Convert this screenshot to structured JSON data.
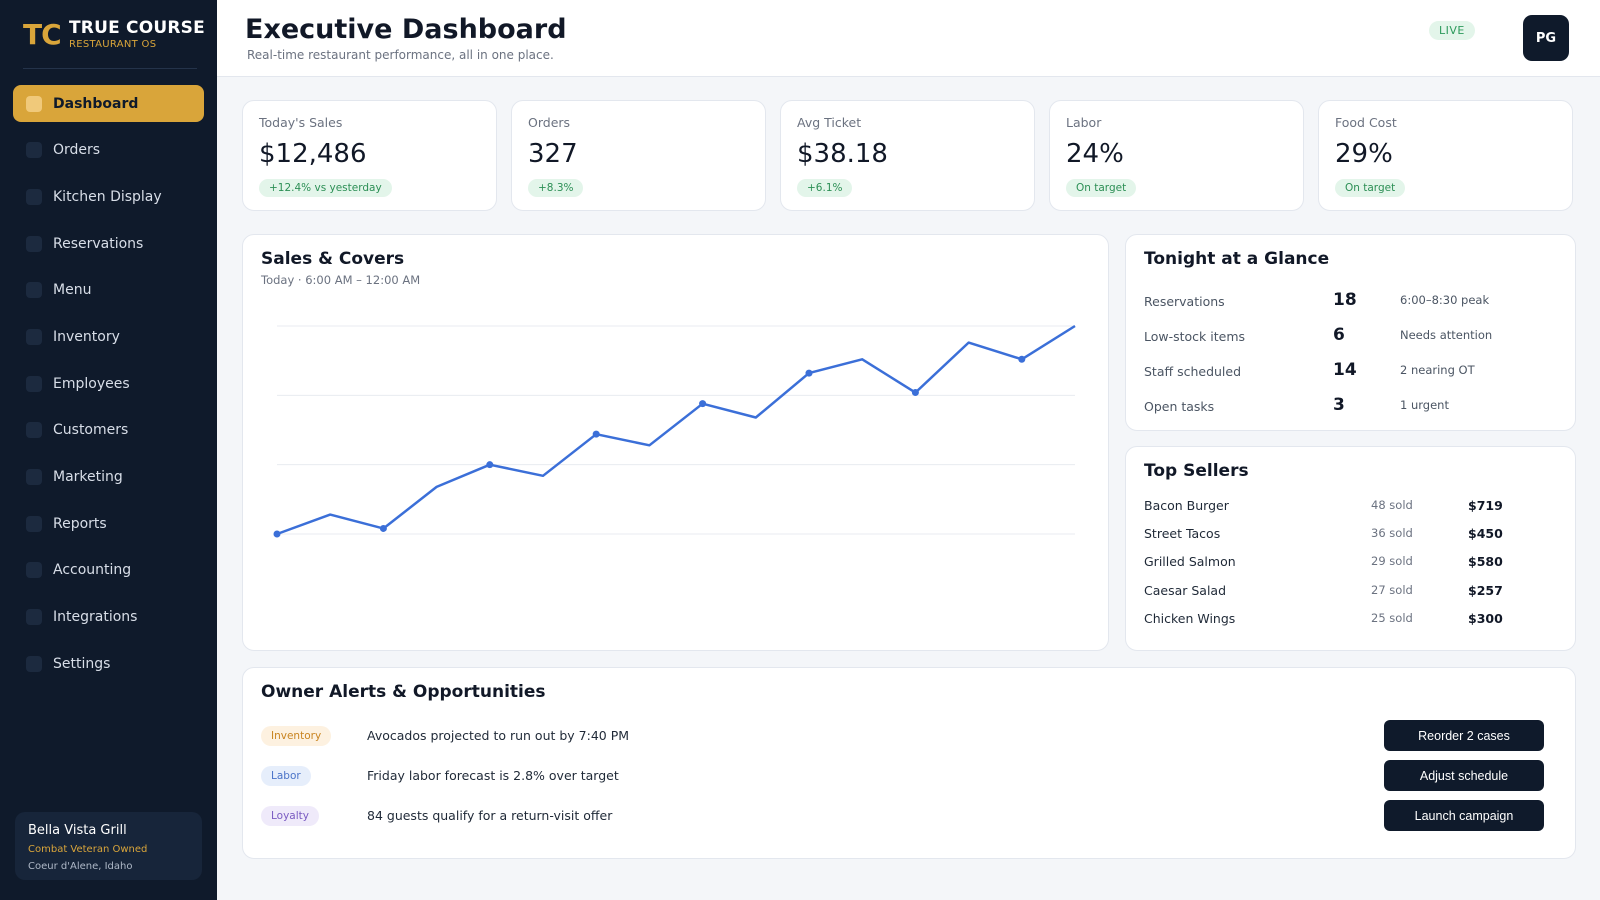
{
  "brand": {
    "mark": "TC",
    "name": "TRUE COURSE",
    "sub": "RESTAURANT OS"
  },
  "nav": [
    {
      "label": "Dashboard",
      "active": true
    },
    {
      "label": "Orders"
    },
    {
      "label": "Kitchen Display"
    },
    {
      "label": "Reservations"
    },
    {
      "label": "Menu"
    },
    {
      "label": "Inventory"
    },
    {
      "label": "Employees"
    },
    {
      "label": "Customers"
    },
    {
      "label": "Marketing"
    },
    {
      "label": "Reports"
    },
    {
      "label": "Accounting"
    },
    {
      "label": "Integrations"
    },
    {
      "label": "Settings"
    }
  ],
  "location": {
    "name": "Bella Vista Grill",
    "tag": "Combat Veteran Owned",
    "city": "Coeur d'Alene, Idaho"
  },
  "header": {
    "title": "Executive Dashboard",
    "subtitle": "Real-time restaurant performance, all in one place.",
    "live": "LIVE",
    "avatar": "PG"
  },
  "kpis": [
    {
      "label": "Today's Sales",
      "value": "$12,486",
      "delta": "+12.4% vs yesterday"
    },
    {
      "label": "Orders",
      "value": "327",
      "delta": "+8.3%"
    },
    {
      "label": "Avg Ticket",
      "value": "$38.18",
      "delta": "+6.1%"
    },
    {
      "label": "Labor",
      "value": "24%",
      "delta": "On target"
    },
    {
      "label": "Food Cost",
      "value": "29%",
      "delta": "On target"
    }
  ],
  "chart": {
    "title": "Sales & Covers",
    "subtitle": "Today · 6:00 AM – 12:00 AM"
  },
  "chart_data": {
    "type": "line",
    "title": "Sales & Covers",
    "subtitle": "Today · 6:00 AM – 12:00 AM",
    "xlabel": "",
    "ylabel": "",
    "grid": true,
    "legend": "none",
    "ylim": [
      0,
      100
    ],
    "series": [
      {
        "values": [
          30,
          37,
          32,
          47,
          55,
          51,
          66,
          62,
          77,
          72,
          88,
          93,
          81,
          99,
          93,
          105
        ]
      }
    ],
    "marked_points": [
      0,
      2,
      4,
      6,
      8,
      10,
      12,
      14
    ],
    "color": "#3b6fd8"
  },
  "glance": {
    "title": "Tonight at a Glance",
    "rows": [
      {
        "label": "Reservations",
        "value": "18",
        "note": "6:00–8:30 peak"
      },
      {
        "label": "Low-stock items",
        "value": "6",
        "note": "Needs attention"
      },
      {
        "label": "Staff scheduled",
        "value": "14",
        "note": "2 nearing OT"
      },
      {
        "label": "Open tasks",
        "value": "3",
        "note": "1 urgent"
      }
    ]
  },
  "sellers": {
    "title": "Top Sellers",
    "rows": [
      {
        "name": "Bacon Burger",
        "sold": "48 sold",
        "amount": "$719"
      },
      {
        "name": "Street Tacos",
        "sold": "36 sold",
        "amount": "$450"
      },
      {
        "name": "Grilled Salmon",
        "sold": "29 sold",
        "amount": "$580"
      },
      {
        "name": "Caesar Salad",
        "sold": "27 sold",
        "amount": "$257"
      },
      {
        "name": "Chicken Wings",
        "sold": "25 sold",
        "amount": "$300"
      }
    ]
  },
  "alerts": {
    "title": "Owner Alerts & Opportunities",
    "rows": [
      {
        "tag": "Inventory",
        "text": "Avocados projected to run out by 7:40 PM",
        "action": "Reorder 2 cases"
      },
      {
        "tag": "Labor",
        "text": "Friday labor forecast is 2.8% over target",
        "action": "Adjust schedule"
      },
      {
        "tag": "Loyalty",
        "text": "84 guests qualify for a return-visit offer",
        "action": "Launch campaign"
      }
    ]
  }
}
